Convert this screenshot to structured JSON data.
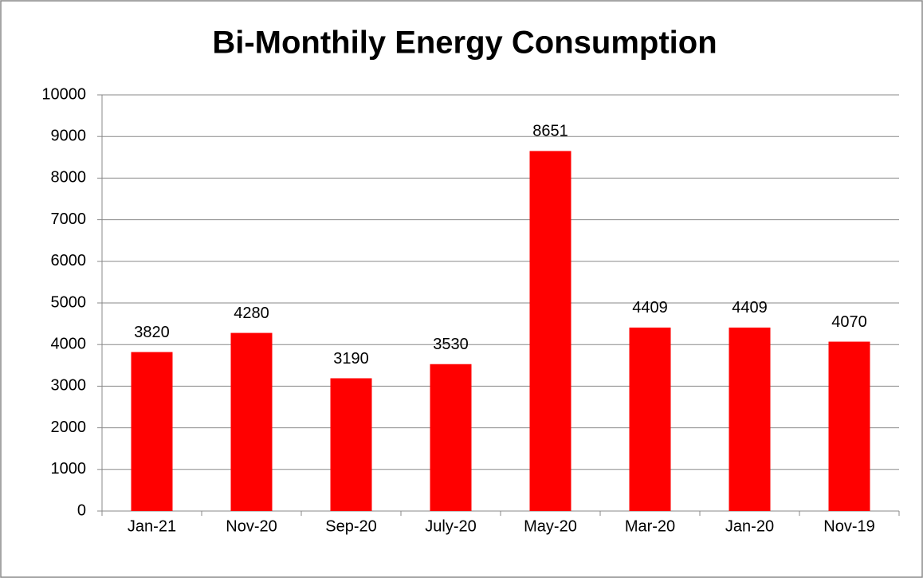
{
  "chart_data": {
    "type": "bar",
    "title": "Bi-Monthily Energy Consumption",
    "categories": [
      "Jan-21",
      "Nov-20",
      "Sep-20",
      "July-20",
      "May-20",
      "Mar-20",
      "Jan-20",
      "Nov-19"
    ],
    "values": [
      3820,
      4280,
      3190,
      3530,
      8651,
      4409,
      4409,
      4070
    ],
    "color": "#ff0000",
    "ylim": [
      0,
      10000
    ],
    "yticks": [
      0,
      1000,
      2000,
      3000,
      4000,
      5000,
      6000,
      7000,
      8000,
      9000,
      10000
    ],
    "grid": true,
    "data_labels": true
  }
}
